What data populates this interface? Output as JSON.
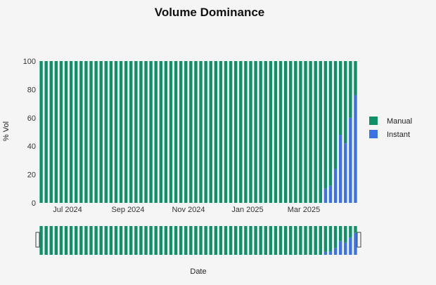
{
  "chart_data": {
    "type": "bar",
    "stacked": true,
    "title": "Volume Dominance",
    "xlabel": "Date",
    "ylabel": "% Vol",
    "ylim": [
      0,
      100
    ],
    "yticks": [
      0,
      20,
      40,
      60,
      80,
      100
    ],
    "xticks": [
      "Jul 2024",
      "Sep 2024",
      "Nov 2024",
      "Jan 2025",
      "Mar 2025"
    ],
    "legend_position": "right",
    "colors": {
      "Manual": "#0e9068",
      "Instant": "#3b73e6"
    },
    "series": [
      {
        "name": "Manual",
        "values": [
          100,
          100,
          100,
          100,
          100,
          100,
          100,
          100,
          100,
          100,
          100,
          100,
          100,
          100,
          100,
          100,
          100,
          100,
          100,
          100,
          100,
          100,
          100,
          100,
          100,
          100,
          100,
          100,
          100,
          100,
          100,
          100,
          100,
          100,
          100,
          100,
          100,
          100,
          100,
          100,
          100,
          100,
          100,
          100,
          100,
          100,
          100,
          100,
          100,
          100,
          100,
          100,
          100,
          100,
          100,
          100,
          100,
          90,
          88,
          76,
          52,
          58,
          40,
          24
        ]
      },
      {
        "name": "Instant",
        "values": [
          0,
          0,
          0,
          0,
          0,
          0,
          0,
          0,
          0,
          0,
          0,
          0,
          0,
          0,
          0,
          0,
          0,
          0,
          0,
          0,
          0,
          0,
          0,
          0,
          0,
          0,
          0,
          0,
          0,
          0,
          0,
          0,
          0,
          0,
          0,
          0,
          0,
          0,
          0,
          0,
          0,
          0,
          0,
          0,
          0,
          0,
          0,
          0,
          0,
          0,
          0,
          0,
          0,
          0,
          0,
          0,
          0,
          10,
          12,
          24,
          48,
          42,
          60,
          76
        ]
      }
    ]
  }
}
